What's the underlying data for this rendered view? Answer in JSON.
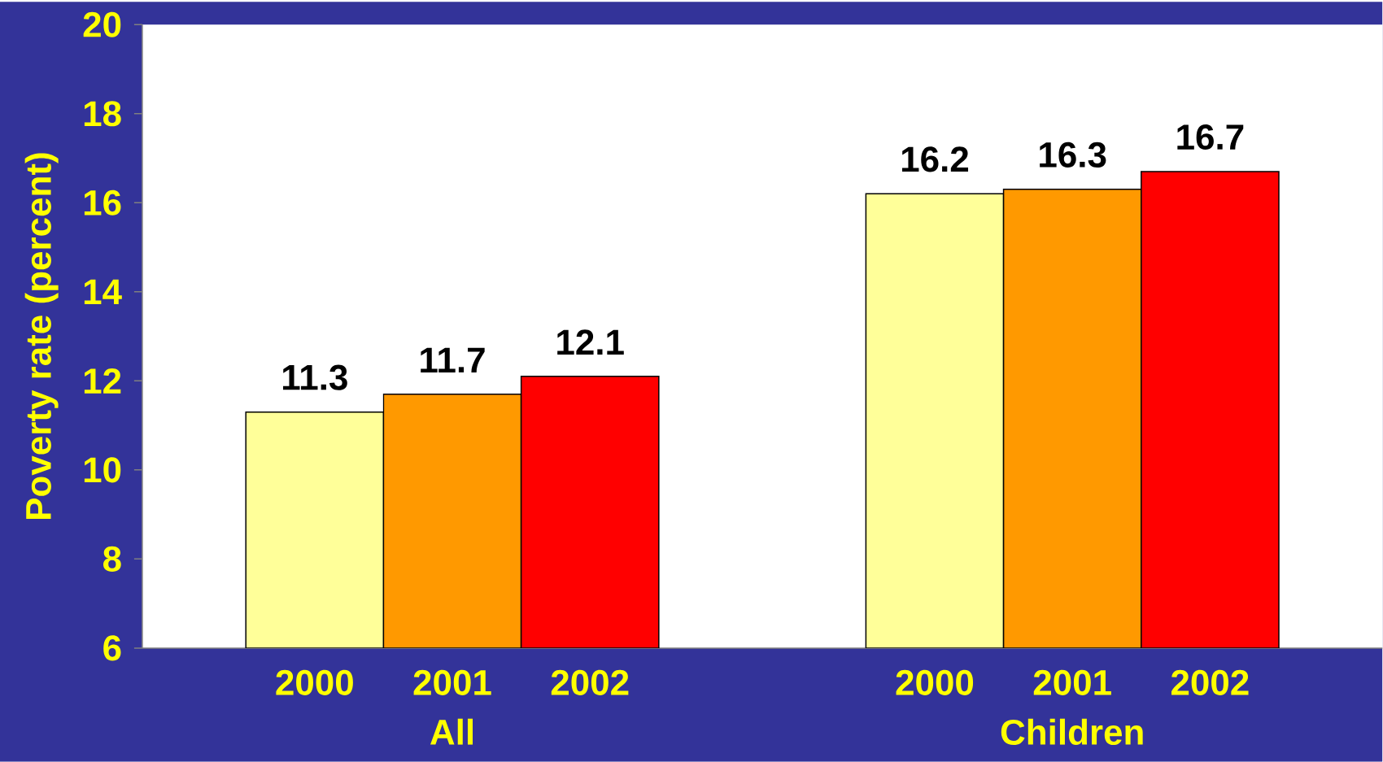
{
  "chart_data": {
    "type": "bar",
    "ylabel": "Poverty rate (percent)",
    "categories": [
      "All",
      "Children"
    ],
    "series": [
      {
        "name": "2000",
        "color": "#ffff99",
        "values": [
          11.3,
          16.2
        ]
      },
      {
        "name": "2001",
        "color": "#ff9900",
        "values": [
          11.7,
          16.3
        ]
      },
      {
        "name": "2002",
        "color": "#ff0000",
        "values": [
          12.1,
          16.7
        ]
      }
    ],
    "ylim": [
      6,
      20
    ],
    "yticks": [
      6,
      8,
      10,
      12,
      14,
      16,
      18,
      20
    ],
    "data_labels": true
  }
}
